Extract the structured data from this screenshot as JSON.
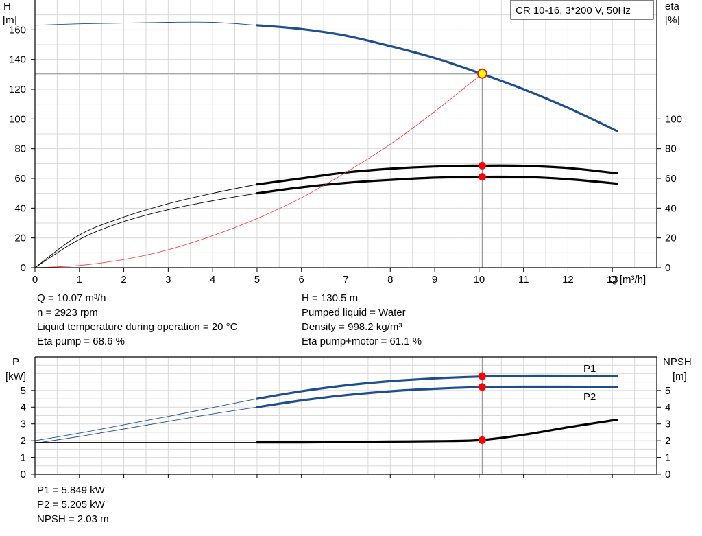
{
  "chart_data": [
    {
      "type": "line",
      "title": "CR 10-16, 3*200 V, 50Hz",
      "xlabel": "Q [m³/h]",
      "ylabel_left": [
        "H",
        "[m]"
      ],
      "ylabel_right": [
        "eta",
        "[%]"
      ],
      "xlim": [
        0,
        14
      ],
      "ylim_left": [
        0,
        180
      ],
      "ylim_right": [
        0,
        180
      ],
      "x_ticks": [
        0,
        1,
        2,
        3,
        4,
        5,
        6,
        7,
        8,
        9,
        10,
        11,
        12,
        13
      ],
      "y_ticks_left": [
        0,
        20,
        40,
        60,
        80,
        100,
        120,
        140,
        160
      ],
      "y_ticks_right": [
        0,
        20,
        40,
        60,
        80,
        100
      ],
      "grid": true,
      "operating_point": {
        "q": 10.07,
        "h": 130.5
      },
      "series": [
        {
          "id": "h",
          "color": "#1f4e8c",
          "thin_until": 5,
          "x": [
            0,
            1,
            2,
            3,
            4,
            5,
            6,
            7,
            8,
            9,
            10,
            11,
            12,
            13.1
          ],
          "y": [
            163,
            164,
            164.5,
            165,
            165,
            163,
            160.5,
            156,
            149,
            141,
            131,
            120,
            107.5,
            92
          ]
        },
        {
          "id": "eta_pump",
          "color": "#000000",
          "thin_until": 5,
          "x": [
            0,
            1,
            2,
            3,
            4,
            5,
            6,
            7,
            8,
            9,
            10,
            11,
            12,
            13.1
          ],
          "y": [
            0,
            22,
            34,
            43,
            50,
            56,
            60,
            64,
            66.5,
            68,
            68.6,
            68.5,
            67,
            63.5
          ]
        },
        {
          "id": "eta_total",
          "color": "#000000",
          "thin_until": 5,
          "x": [
            0,
            1,
            2,
            3,
            4,
            5,
            6,
            7,
            8,
            9,
            10,
            11,
            12,
            13.1
          ],
          "y": [
            0,
            19,
            31,
            39,
            45,
            50,
            54,
            57,
            59,
            60.5,
            61.1,
            61,
            59.5,
            56.5
          ]
        },
        {
          "id": "system_curve",
          "color": "#ff3030",
          "width": 0.8,
          "x": [
            0,
            1,
            2,
            3,
            4,
            5,
            6,
            7,
            8,
            9,
            10.07
          ],
          "y": [
            0,
            1.5,
            5.5,
            12,
            21.5,
            33,
            47,
            64,
            83,
            105,
            130.5
          ]
        }
      ],
      "markers": [
        {
          "x": 10.07,
          "y": 68.6,
          "color": "#ff0000"
        },
        {
          "x": 10.07,
          "y": 61.1,
          "color": "#ff0000"
        }
      ]
    },
    {
      "type": "line",
      "ylabel_left": [
        "P",
        "[kW]"
      ],
      "ylabel_right": [
        "NPSH",
        "[m]"
      ],
      "xlim": [
        0,
        14
      ],
      "ylim": [
        0,
        7
      ],
      "y_ticks": [
        0,
        1,
        2,
        3,
        4,
        5
      ],
      "grid": true,
      "series": [
        {
          "id": "p1",
          "name": "P1",
          "color": "#1f4e8c",
          "thin_until": 5,
          "x": [
            0,
            1,
            2,
            3,
            4,
            5,
            6,
            7,
            8,
            9,
            10,
            11,
            12,
            13.1
          ],
          "y": [
            2.0,
            2.45,
            2.95,
            3.45,
            3.98,
            4.5,
            4.95,
            5.3,
            5.55,
            5.72,
            5.82,
            5.87,
            5.87,
            5.85
          ]
        },
        {
          "id": "p2",
          "name": "P2",
          "color": "#1f4e8c",
          "thin_until": 5,
          "x": [
            0,
            1,
            2,
            3,
            4,
            5,
            6,
            7,
            8,
            9,
            10,
            11,
            12,
            13.1
          ],
          "y": [
            1.85,
            2.25,
            2.7,
            3.15,
            3.6,
            4.0,
            4.4,
            4.72,
            4.95,
            5.1,
            5.19,
            5.22,
            5.22,
            5.2
          ]
        },
        {
          "id": "npsh",
          "color": "#000000",
          "thin_until": 5,
          "x": [
            0,
            1,
            2,
            3,
            4,
            5,
            6,
            7,
            8,
            9,
            10,
            11,
            12,
            13.1
          ],
          "y": [
            1.9,
            1.9,
            1.9,
            1.9,
            1.9,
            1.9,
            1.9,
            1.92,
            1.95,
            1.97,
            2.03,
            2.35,
            2.8,
            3.25
          ]
        }
      ],
      "markers": [
        {
          "x": 10.07,
          "y": 5.849,
          "color": "#ff0000"
        },
        {
          "x": 10.07,
          "y": 5.205,
          "color": "#ff0000"
        },
        {
          "x": 10.07,
          "y": 2.03,
          "color": "#ff0000"
        }
      ]
    }
  ],
  "info_top_left": [
    "Q = 10.07 m³/h",
    "n = 2923 rpm",
    "Liquid temperature during operation = 20 °C",
    "Eta pump = 68.6 %"
  ],
  "info_top_right": [
    "H = 130.5 m",
    "Pumped liquid = Water",
    "Density = 998.2 kg/m³",
    "Eta pump+motor = 61.1 %"
  ],
  "info_bottom": [
    "P1 = 5.849 kW",
    "P2 = 5.205 kW",
    "NPSH = 2.03 m"
  ]
}
